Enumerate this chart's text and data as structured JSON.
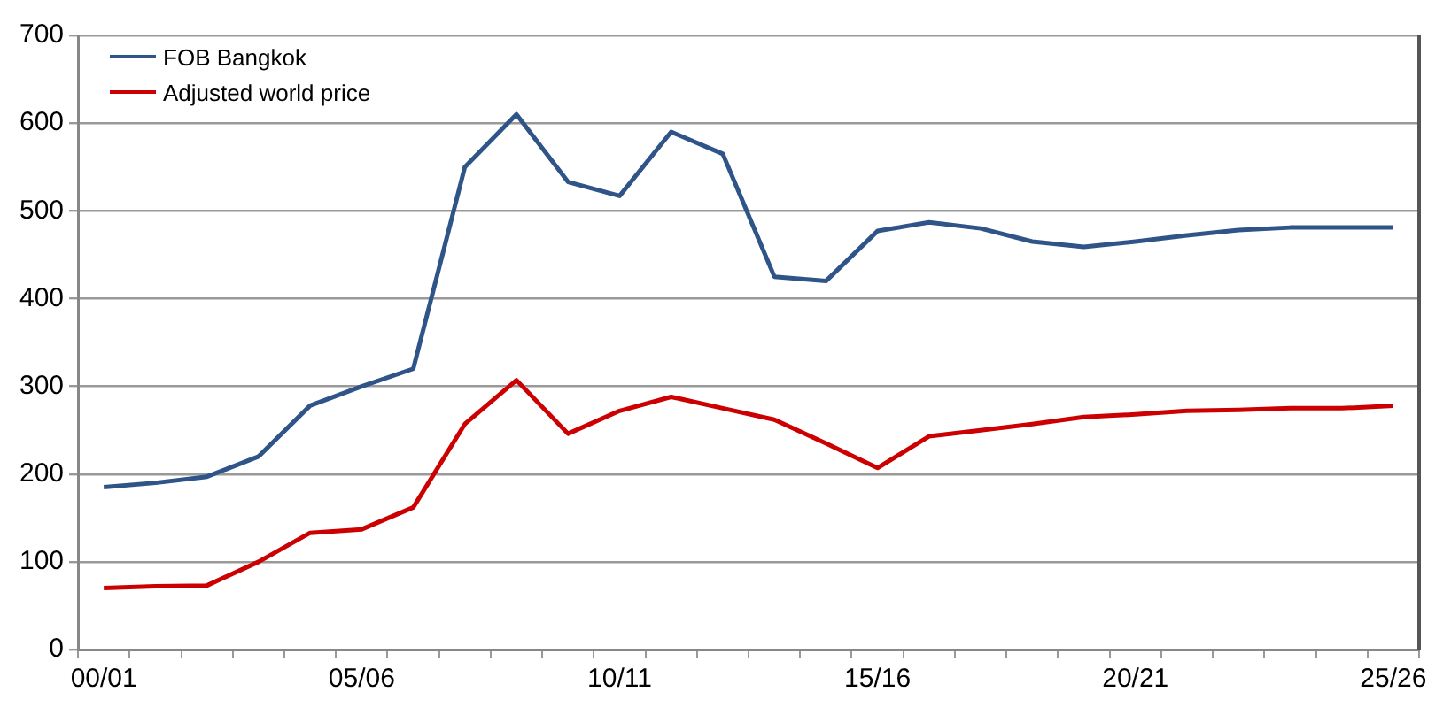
{
  "chart_data": {
    "type": "line",
    "categories": [
      "00/01",
      null,
      null,
      null,
      null,
      "05/06",
      null,
      null,
      null,
      null,
      "10/11",
      null,
      null,
      null,
      null,
      "15/16",
      null,
      null,
      null,
      null,
      "20/21",
      null,
      null,
      null,
      null,
      "25/26"
    ],
    "series": [
      {
        "name": "FOB Bangkok",
        "color": "#2f5487",
        "values": [
          185,
          190,
          197,
          220,
          278,
          300,
          320,
          550,
          610,
          533,
          517,
          590,
          565,
          425,
          420,
          477,
          487,
          480,
          465,
          459,
          465,
          472,
          478,
          481,
          481,
          481
        ]
      },
      {
        "name": "Adjusted world price",
        "color": "#cc0000",
        "values": [
          70,
          72,
          73,
          100,
          133,
          137,
          162,
          257,
          307,
          246,
          272,
          288,
          275,
          262,
          235,
          207,
          243,
          250,
          257,
          265,
          268,
          272,
          273,
          275,
          275,
          278
        ]
      }
    ],
    "ylim": [
      0,
      700
    ],
    "yticks": [
      0,
      100,
      200,
      300,
      400,
      500,
      600,
      700
    ],
    "grid": "y",
    "legend": "top left",
    "marker": "none",
    "line_style": "solid"
  }
}
